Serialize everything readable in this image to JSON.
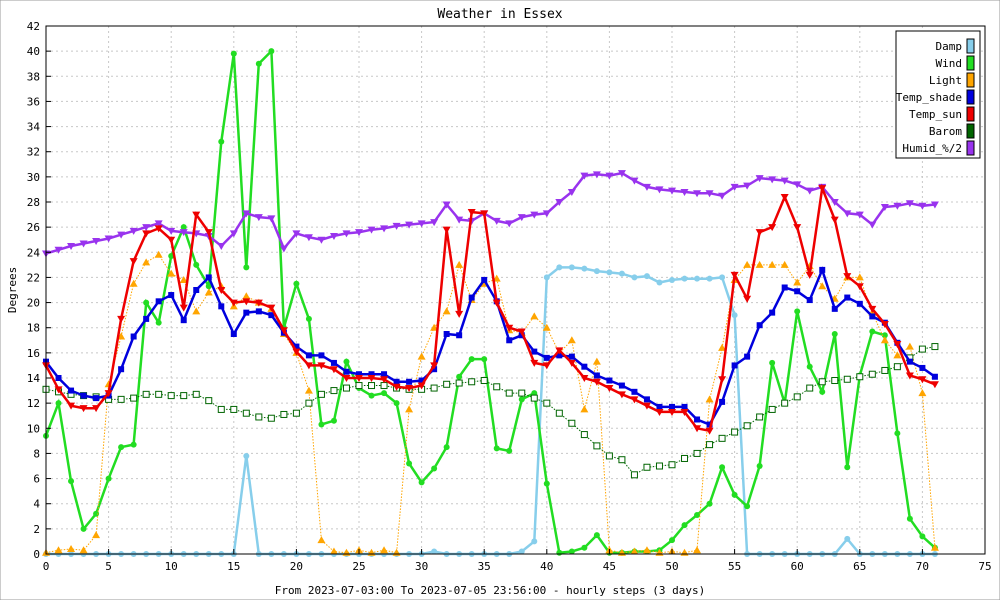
{
  "chart_data": {
    "type": "line",
    "title": "Weather in Essex",
    "xlabel": "From 2023-07-03:00 To 2023-07-05 23:56:00 - hourly steps (3 days)",
    "ylabel": "Degrees",
    "xlim": [
      0,
      75
    ],
    "ylim": [
      0,
      42
    ],
    "x_ticks": [
      0,
      5,
      10,
      15,
      20,
      25,
      30,
      35,
      40,
      45,
      50,
      55,
      60,
      65,
      70,
      75
    ],
    "y_ticks": [
      0,
      2,
      4,
      6,
      8,
      10,
      12,
      14,
      16,
      18,
      20,
      22,
      24,
      26,
      28,
      30,
      32,
      34,
      36,
      38,
      40,
      42
    ],
    "grid": true,
    "legend_position": "top-right",
    "series": [
      {
        "name": "Damp",
        "color": "#87ceeb",
        "marker": "circle",
        "style": "solid",
        "x": [
          0,
          1,
          2,
          3,
          4,
          5,
          6,
          7,
          8,
          9,
          10,
          11,
          12,
          13,
          14,
          15,
          16,
          17,
          18,
          19,
          20,
          21,
          22,
          23,
          24,
          25,
          26,
          27,
          28,
          29,
          30,
          31,
          32,
          33,
          34,
          35,
          36,
          37,
          38,
          39,
          40,
          41,
          42,
          43,
          44,
          45,
          46,
          47,
          48,
          49,
          50,
          51,
          52,
          53,
          54,
          55,
          56,
          57,
          58,
          59,
          60,
          61,
          62,
          63,
          64,
          65,
          66,
          67,
          68,
          69,
          70,
          71
        ],
        "values": [
          0,
          0,
          0,
          0,
          0,
          0,
          0,
          0,
          0,
          0,
          0,
          0,
          0,
          0,
          0,
          0,
          7.8,
          0,
          0,
          0,
          0,
          0,
          0,
          0,
          0,
          0,
          0,
          0,
          0,
          0,
          0,
          0.2,
          0,
          0,
          0,
          0,
          0,
          0,
          0.2,
          1,
          22,
          22.8,
          22.8,
          22.7,
          22.5,
          22.4,
          22.3,
          22,
          22.1,
          21.6,
          21.8,
          21.9,
          21.9,
          21.9,
          22,
          19,
          0,
          0,
          0,
          0,
          0,
          0,
          0,
          0,
          1.2,
          0,
          0,
          0,
          0,
          0,
          0,
          0
        ]
      },
      {
        "name": "Wind",
        "color": "#22dd22",
        "marker": "circle",
        "style": "solid",
        "x": [
          0,
          1,
          2,
          3,
          4,
          5,
          6,
          7,
          8,
          9,
          10,
          11,
          12,
          13,
          14,
          15,
          16,
          17,
          18,
          19,
          20,
          21,
          22,
          23,
          24,
          25,
          26,
          27,
          28,
          29,
          30,
          31,
          32,
          33,
          34,
          35,
          36,
          37,
          38,
          39,
          40,
          41,
          42,
          43,
          44,
          45,
          46,
          47,
          48,
          49,
          50,
          51,
          52,
          53,
          54,
          55,
          56,
          57,
          58,
          59,
          60,
          61,
          62,
          63,
          64,
          65,
          66,
          67,
          68,
          69,
          70,
          71
        ],
        "values": [
          9.4,
          12,
          5.8,
          2,
          3.2,
          6,
          8.5,
          8.7,
          20,
          18.4,
          23.7,
          26,
          23,
          21.3,
          32.8,
          39.8,
          22.8,
          39,
          40,
          18,
          21.5,
          18.7,
          10.3,
          10.6,
          15.3,
          13.2,
          12.6,
          12.8,
          12,
          7.2,
          5.7,
          6.8,
          8.5,
          14.1,
          15.5,
          15.5,
          8.4,
          8.2,
          12.3,
          12.8,
          5.6,
          0.1,
          0.2,
          0.5,
          1.5,
          0.1,
          0.1,
          0.2,
          0.2,
          0.3,
          1.1,
          2.3,
          3.1,
          4,
          6.9,
          4.7,
          3.8,
          7,
          15.2,
          12,
          19.3,
          14.9,
          12.9,
          17.5,
          6.9,
          14.2,
          17.7,
          17.4,
          9.6,
          2.8,
          1.4,
          0.5
        ]
      },
      {
        "name": "Light",
        "color": "#ffa500",
        "marker": "triangle",
        "style": "dotted",
        "x": [
          0,
          1,
          2,
          3,
          4,
          5,
          6,
          7,
          8,
          9,
          10,
          11,
          12,
          13,
          14,
          15,
          16,
          17,
          18,
          19,
          20,
          21,
          22,
          23,
          24,
          25,
          26,
          27,
          28,
          29,
          30,
          31,
          32,
          33,
          34,
          35,
          36,
          37,
          38,
          39,
          40,
          41,
          42,
          43,
          44,
          45,
          46,
          47,
          48,
          49,
          50,
          51,
          52,
          53,
          54,
          55,
          56,
          57,
          58,
          59,
          60,
          61,
          62,
          63,
          64,
          65,
          66,
          67,
          68,
          69,
          70,
          71
        ],
        "values": [
          0.1,
          0.3,
          0.4,
          0.3,
          1.5,
          13.5,
          17.3,
          21.5,
          23.2,
          23.8,
          22.3,
          21.8,
          19.3,
          20.8,
          21.3,
          19.7,
          20.5,
          20,
          19.5,
          17.5,
          16,
          13,
          1.1,
          0.2,
          0.1,
          0.3,
          0.1,
          0.3,
          0.1,
          11.5,
          15.7,
          18,
          19.3,
          23,
          20.2,
          21.5,
          21.9,
          17.8,
          17.6,
          18.9,
          18,
          16,
          17,
          11.5,
          15.3,
          0.3,
          0.1,
          0.2,
          0.3,
          0.1,
          0.2,
          0.1,
          0.3,
          12.3,
          16.4,
          21.8,
          23,
          23,
          23,
          23,
          21.6,
          22.9,
          21.3,
          20.3,
          22,
          22,
          19.2,
          17,
          15.8,
          16.5,
          12.8,
          0.5
        ]
      },
      {
        "name": "Temp_shade",
        "color": "#0000dd",
        "marker": "square",
        "style": "solid",
        "x": [
          0,
          1,
          2,
          3,
          4,
          5,
          6,
          7,
          8,
          9,
          10,
          11,
          12,
          13,
          14,
          15,
          16,
          17,
          18,
          19,
          20,
          21,
          22,
          23,
          24,
          25,
          26,
          27,
          28,
          29,
          30,
          31,
          32,
          33,
          34,
          35,
          36,
          37,
          38,
          39,
          40,
          41,
          42,
          43,
          44,
          45,
          46,
          47,
          48,
          49,
          50,
          51,
          52,
          53,
          54,
          55,
          56,
          57,
          58,
          59,
          60,
          61,
          62,
          63,
          64,
          65,
          66,
          67,
          68,
          69,
          70,
          71
        ],
        "values": [
          15.3,
          14,
          13,
          12.6,
          12.4,
          12.6,
          14.7,
          17.3,
          18.7,
          20.1,
          20.6,
          18.6,
          21,
          22,
          19.7,
          17.5,
          19.2,
          19.3,
          19,
          17.6,
          16.5,
          15.8,
          15.8,
          15.2,
          14.5,
          14.3,
          14.3,
          14.3,
          13.7,
          13.7,
          13.8,
          14.7,
          17.5,
          17.4,
          20.4,
          21.8,
          20.1,
          17,
          17.4,
          16.1,
          15.6,
          15.8,
          15.7,
          14.9,
          14.2,
          13.8,
          13.4,
          12.9,
          12.3,
          11.7,
          11.7,
          11.7,
          10.7,
          10.3,
          12.1,
          15,
          15.7,
          18.2,
          19.2,
          21.2,
          20.9,
          20.2,
          22.6,
          19.5,
          20.4,
          19.9,
          18.9,
          18.4,
          16.8,
          15.3,
          14.8,
          14.1
        ]
      },
      {
        "name": "Temp_sun",
        "color": "#ee0000",
        "marker": "triangle-down",
        "style": "solid",
        "x": [
          0,
          1,
          2,
          3,
          4,
          5,
          6,
          7,
          8,
          9,
          10,
          11,
          12,
          13,
          14,
          15,
          16,
          17,
          18,
          19,
          20,
          21,
          22,
          23,
          24,
          25,
          26,
          27,
          28,
          29,
          30,
          31,
          32,
          33,
          34,
          35,
          36,
          37,
          38,
          39,
          40,
          41,
          42,
          43,
          44,
          45,
          46,
          47,
          48,
          49,
          50,
          51,
          52,
          53,
          54,
          55,
          56,
          57,
          58,
          59,
          60,
          61,
          62,
          63,
          64,
          65,
          66,
          67,
          68,
          69,
          70,
          71
        ],
        "values": [
          15,
          13.1,
          11.8,
          11.6,
          11.6,
          12.8,
          18.7,
          23.3,
          25.5,
          25.9,
          25,
          19.6,
          27,
          25.6,
          21,
          20,
          20.1,
          20,
          19.6,
          17.8,
          16.1,
          15,
          15,
          14.7,
          14,
          14,
          14,
          13.9,
          13.3,
          13.2,
          13.4,
          15,
          25.8,
          19.1,
          27.2,
          27.1,
          20,
          18,
          17.7,
          15.2,
          15,
          16.2,
          15.2,
          14,
          13.7,
          13.2,
          12.7,
          12.3,
          11.8,
          11.3,
          11.3,
          11.3,
          10,
          9.8,
          13.9,
          22.2,
          20.3,
          25.6,
          26,
          28.4,
          26,
          22.2,
          29.1,
          26.6,
          22.1,
          21.3,
          19.5,
          18.3,
          16.7,
          14.2,
          13.9,
          13.5
        ]
      },
      {
        "name": "Barom",
        "color": "#006400",
        "marker": "open-square",
        "style": "dotted",
        "x": [
          0,
          1,
          2,
          3,
          4,
          5,
          6,
          7,
          8,
          9,
          10,
          11,
          12,
          13,
          14,
          15,
          16,
          17,
          18,
          19,
          20,
          21,
          22,
          23,
          24,
          25,
          26,
          27,
          28,
          29,
          30,
          31,
          32,
          33,
          34,
          35,
          36,
          37,
          38,
          39,
          40,
          41,
          42,
          43,
          44,
          45,
          46,
          47,
          48,
          49,
          50,
          51,
          52,
          53,
          54,
          55,
          56,
          57,
          58,
          59,
          60,
          61,
          62,
          63,
          64,
          65,
          66,
          67,
          68,
          69,
          70,
          71
        ],
        "values": [
          13.1,
          12.9,
          12.7,
          12.6,
          12.5,
          12.3,
          12.3,
          12.4,
          12.7,
          12.7,
          12.6,
          12.6,
          12.7,
          12.2,
          11.5,
          11.5,
          11.2,
          10.9,
          10.8,
          11.1,
          11.2,
          12,
          12.7,
          13,
          13.2,
          13.4,
          13.4,
          13.4,
          13.2,
          13.1,
          13.1,
          13.2,
          13.5,
          13.6,
          13.7,
          13.8,
          13.3,
          12.8,
          12.8,
          12.4,
          12,
          11.2,
          10.4,
          9.5,
          8.6,
          7.8,
          7.5,
          6.3,
          6.9,
          7,
          7.1,
          7.6,
          8,
          8.7,
          9.2,
          9.7,
          10.2,
          10.9,
          11.5,
          12,
          12.5,
          13.2,
          13.7,
          13.8,
          13.9,
          14.1,
          14.3,
          14.6,
          14.9,
          15.6,
          16.3,
          16.5
        ]
      },
      {
        "name": "Humid_%/2",
        "color": "#9933ee",
        "marker": "triangle-down",
        "style": "solid",
        "x": [
          0,
          1,
          2,
          3,
          4,
          5,
          6,
          7,
          8,
          9,
          10,
          11,
          12,
          13,
          14,
          15,
          16,
          17,
          18,
          19,
          20,
          21,
          22,
          23,
          24,
          25,
          26,
          27,
          28,
          29,
          30,
          31,
          32,
          33,
          34,
          35,
          36,
          37,
          38,
          39,
          40,
          41,
          42,
          43,
          44,
          45,
          46,
          47,
          48,
          49,
          50,
          51,
          52,
          53,
          54,
          55,
          56,
          57,
          58,
          59,
          60,
          61,
          62,
          63,
          64,
          65,
          66,
          67,
          68,
          69,
          70,
          71
        ],
        "values": [
          23.9,
          24.2,
          24.5,
          24.7,
          24.9,
          25.1,
          25.4,
          25.7,
          26,
          26.3,
          25.7,
          25.6,
          25.5,
          25.3,
          24.5,
          25.5,
          27.1,
          26.8,
          26.7,
          24.3,
          25.5,
          25.2,
          25,
          25.3,
          25.5,
          25.6,
          25.8,
          25.9,
          26.1,
          26.2,
          26.3,
          26.4,
          27.8,
          26.6,
          26.5,
          27.1,
          26.5,
          26.3,
          26.8,
          27,
          27.1,
          28,
          28.8,
          30.1,
          30.2,
          30.1,
          30.3,
          29.7,
          29.2,
          29,
          28.9,
          28.8,
          28.7,
          28.7,
          28.5,
          29.2,
          29.3,
          29.9,
          29.8,
          29.7,
          29.4,
          28.9,
          29.2,
          28,
          27.1,
          27,
          26.2,
          27.6,
          27.7,
          27.9,
          27.7,
          27.8
        ]
      }
    ]
  }
}
